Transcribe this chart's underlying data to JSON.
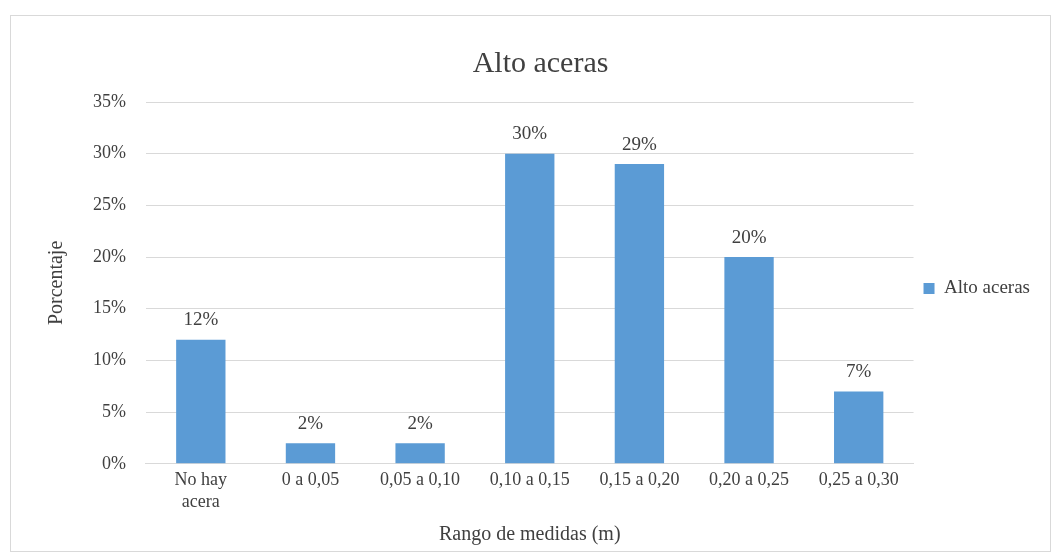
{
  "chart_data": {
    "type": "bar",
    "title": "Alto aceras",
    "xlabel": "Rango de medidas (m)",
    "ylabel": "Porcentaje",
    "categories": [
      "No hay acera",
      "0 a 0,05",
      "0,05 a 0,10",
      "0,10 a 0,15",
      "0,15 a 0,20",
      "0,20 a 0,25",
      "0,25 a 0,30"
    ],
    "series": [
      {
        "name": "Alto aceras",
        "color": "#5b9bd5",
        "values": [
          12,
          2,
          2,
          30,
          29,
          20,
          7
        ],
        "value_labels": [
          "12%",
          "2%",
          "2%",
          "30%",
          "29%",
          "20%",
          "7%"
        ]
      }
    ],
    "ylim": [
      0,
      35
    ],
    "yticks": [
      {
        "value": 0,
        "label": "0%"
      },
      {
        "value": 5,
        "label": "5%"
      },
      {
        "value": 10,
        "label": "10%"
      },
      {
        "value": 15,
        "label": "15%"
      },
      {
        "value": 20,
        "label": "20%"
      },
      {
        "value": 25,
        "label": "25%"
      },
      {
        "value": 30,
        "label": "30%"
      },
      {
        "value": 35,
        "label": "35%"
      }
    ],
    "grid": "y",
    "legend": "right"
  }
}
